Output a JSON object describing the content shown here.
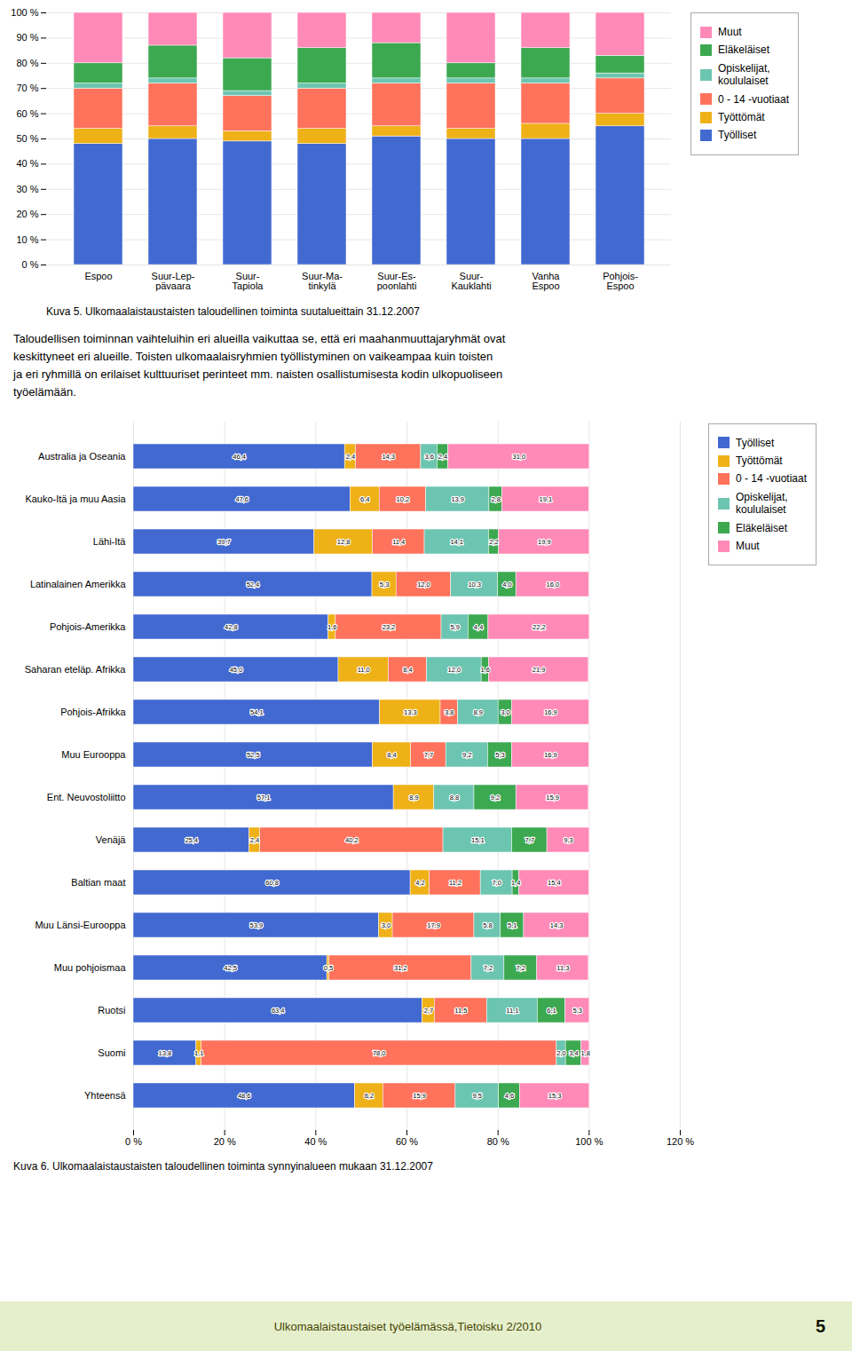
{
  "chart_data": [
    {
      "type": "bar",
      "stacked": true,
      "title": "Kuva 5. Ulkomaalaistaustaisten taloudellinen toiminta suutalueittain 31.12.2007",
      "categories": [
        "Espoo",
        "Suur-Lep-\npävaara",
        "Suur-\nTapiola",
        "Suur-Ma-\ntinkylä",
        "Suur-Es-\npoonlahti",
        "Suur-\nKauklahti",
        "Vanha\nEspoo",
        "Pohjois-\nEspoo"
      ],
      "series": [
        {
          "name": "Työlliset",
          "values": [
            48,
            50,
            49,
            48,
            51,
            50,
            50,
            55
          ]
        },
        {
          "name": "Työttömät",
          "values": [
            6,
            5,
            4,
            6,
            4,
            4,
            6,
            5
          ]
        },
        {
          "name": "0 - 14 -vuotiaat",
          "values": [
            16,
            17,
            14,
            16,
            17,
            18,
            16,
            14
          ]
        },
        {
          "name": "Opiskelijat,\nkoululaiset",
          "values": [
            2,
            2,
            2,
            2,
            2,
            2,
            2,
            2
          ]
        },
        {
          "name": "Eläkeläiset",
          "values": [
            8,
            13,
            13,
            14,
            14,
            6,
            12,
            7
          ]
        },
        {
          "name": "Muut",
          "values": [
            20,
            13,
            18,
            14,
            12,
            20,
            14,
            17
          ]
        }
      ],
      "ylim": [
        0,
        100
      ],
      "yticks": [
        {
          "value": 0,
          "label": "0 %"
        },
        {
          "value": 10,
          "label": "10 %"
        },
        {
          "value": 20,
          "label": "20 %"
        },
        {
          "value": 30,
          "label": "30 %"
        },
        {
          "value": 40,
          "label": "40 %"
        },
        {
          "value": 50,
          "label": "50 %"
        },
        {
          "value": 60,
          "label": "60 %"
        },
        {
          "value": 70,
          "label": "70 %"
        },
        {
          "value": 80,
          "label": "80 %"
        },
        {
          "value": 90,
          "label": "90 %"
        },
        {
          "value": 100,
          "label": "100 %"
        }
      ],
      "grid": true,
      "legend": "right",
      "annotations": [
        "Taloudellisen toiminnan vaihteluihin eri alueilla vaikuttaa se, että eri maahanmuuttajaryhmät ovat\nkeskittyneet eri alueille. Toisten ulkomaalaisryhmien työllistyminen on vaikeampaa kuin toisten\nja eri ryhmillä on erilaiset kulttuuriset perinteet mm. naisten osallistumisesta kodin ulkopuoliseen\ntyöelämään."
      ]
    },
    {
      "type": "bar",
      "orientation": "horizontal",
      "stacked": true,
      "data_labels": true,
      "title": "Kuva 6. Ulkomaalaistaustaisten taloudellinen toiminta synnyinalueen mukaan 31.12.2007",
      "categories": [
        "Australia ja Oseania",
        "Kauko-Itä ja muu Aasia",
        "Lähi-Itä",
        "Latinalainen Amerikka",
        "Pohjois-Amerikka",
        "Saharan eteläp. Afrikka",
        "Pohjois-Afrikka",
        "Muu Eurooppa",
        "Ent. Neuvostoliitto",
        "Venäjä",
        "Baltian maat",
        "Muu Länsi-Eurooppa",
        "Muu pohjoismaa",
        "Ruotsi",
        "Suomi",
        "Yhteensä"
      ],
      "series": [
        {
          "name": "Työlliset",
          "values": [
            46.4,
            47.6,
            39.7,
            52.4,
            42.8,
            45.0,
            54.1,
            52.5,
            57.1,
            25.4,
            60.8,
            53.9,
            42.5,
            63.4,
            13.8,
            48.6
          ],
          "value_labels": [
            "46,4",
            "47,6",
            "39,7",
            "52,4",
            "42,8",
            "45,0",
            "54,1",
            "52,5",
            "57,1",
            "25,4",
            "60,8",
            "53,9",
            "42,5",
            "63,4",
            "13,8",
            "48,6"
          ]
        },
        {
          "name": "Työttömät",
          "values": [
            2.4,
            6.4,
            12.8,
            5.3,
            1.6,
            11.0,
            13.3,
            8.4,
            8.9,
            2.4,
            4.2,
            3.0,
            0.5,
            2.7,
            1.1,
            6.2
          ],
          "value_labels": [
            "2,4",
            "6,4",
            "12,8",
            "5,3",
            "1,6",
            "11,0",
            "13,3",
            "8,4",
            "8,9",
            "2,4",
            "4,2",
            "3,0",
            "0,5",
            "2,7",
            "1,1",
            "6,2"
          ]
        },
        {
          "name": "0 - 14 -vuotiaat",
          "values": [
            14.3,
            10.2,
            11.4,
            12.0,
            23.2,
            8.4,
            3.8,
            7.7,
            0.0,
            40.2,
            11.2,
            17.9,
            31.2,
            11.5,
            78.0,
            15.9
          ],
          "value_labels": [
            "14,3",
            "10,2",
            "11,4",
            "12,0",
            "23,2",
            "8,4",
            "3,8",
            "7,7",
            null,
            "40,2",
            "11,2",
            "17,9",
            "31,2",
            "11,5",
            "78,0",
            "15,9"
          ]
        },
        {
          "name": "Opiskelijat,\nkoululaiset",
          "values": [
            3.6,
            13.9,
            14.1,
            10.3,
            5.9,
            12.0,
            8.9,
            9.2,
            8.8,
            15.1,
            7.0,
            5.8,
            7.2,
            11.1,
            2.0,
            9.5
          ],
          "value_labels": [
            "3,6",
            "13,9",
            "14,1",
            "10,3",
            "5,9",
            "12,0",
            "8,9",
            "9,2",
            "8,8",
            "15,1",
            "7,0",
            "5,8",
            "7,2",
            "11,1",
            "2,0",
            "9,5"
          ]
        },
        {
          "name": "Eläkeläiset",
          "values": [
            2.4,
            2.8,
            2.2,
            4.0,
            4.4,
            1.6,
            3.0,
            5.3,
            9.2,
            7.7,
            1.4,
            5.1,
            7.2,
            6.1,
            3.4,
            4.6
          ],
          "value_labels": [
            "2,4",
            "2,8",
            "2,2",
            "4,0",
            "4,4",
            "1,6",
            "3,0",
            "5,3",
            "9,2",
            "7,7",
            "1,4",
            "5,1",
            "7,2",
            "6,1",
            "3,4",
            "4,6"
          ]
        },
        {
          "name": "Muut",
          "values": [
            31.0,
            19.1,
            19.9,
            16.0,
            22.2,
            21.9,
            16.9,
            16.9,
            15.9,
            9.3,
            15.4,
            14.3,
            11.3,
            5.3,
            1.8,
            15.3
          ],
          "value_labels": [
            "31,0",
            "19,1",
            "19,9",
            "16,0",
            "22,2",
            "21,9",
            "16,9",
            "16,9",
            "15,9",
            "9,3",
            "15,4",
            "14,3",
            "11,3",
            "5,3",
            "1,8",
            "15,3"
          ]
        }
      ],
      "xlim": [
        0,
        120
      ],
      "xticks": [
        {
          "value": 0,
          "label": "0 %"
        },
        {
          "value": 20,
          "label": "20 %"
        },
        {
          "value": 40,
          "label": "40 %"
        },
        {
          "value": 60,
          "label": "60 %"
        },
        {
          "value": 80,
          "label": "80 %"
        },
        {
          "value": 100,
          "label": "100 %"
        },
        {
          "value": 120,
          "label": "120 %"
        }
      ],
      "grid": true,
      "legend": "right",
      "annotations": [
        "Ulkomaalaistaustaiset työelämässä,Tietoisku 2/2010",
        "5"
      ]
    }
  ]
}
